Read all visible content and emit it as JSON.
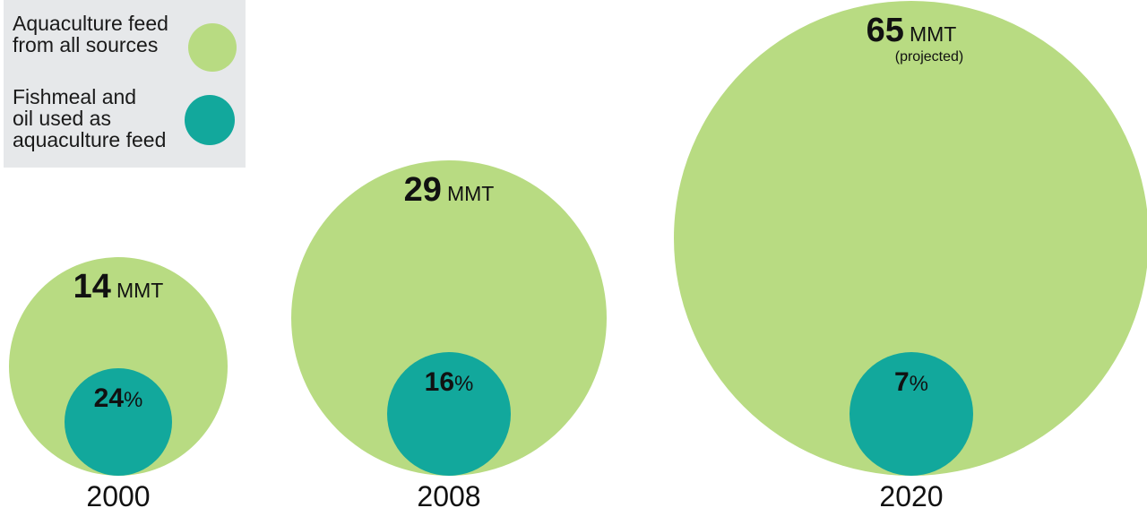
{
  "legend": {
    "items": [
      {
        "label_lines": [
          "Aquaculture feed",
          "from all sources"
        ],
        "color": "#b8db82"
      },
      {
        "label_lines": [
          "Fishmeal and",
          "oil used as",
          "aquaculture feed"
        ],
        "color": "#12a89c"
      }
    ]
  },
  "chart_data": {
    "type": "bubble",
    "categories": [
      "2000",
      "2008",
      "2020"
    ],
    "series": [
      {
        "name": "Aquaculture feed from all sources",
        "values": [
          14,
          29,
          65
        ],
        "unit": "MMT",
        "color": "#b8db82"
      },
      {
        "name": "Fishmeal and oil used as aquaculture feed",
        "values": [
          24,
          16,
          7
        ],
        "unit": "%",
        "color": "#12a89c"
      }
    ],
    "notes": [
      "",
      "",
      "(projected)"
    ]
  }
}
